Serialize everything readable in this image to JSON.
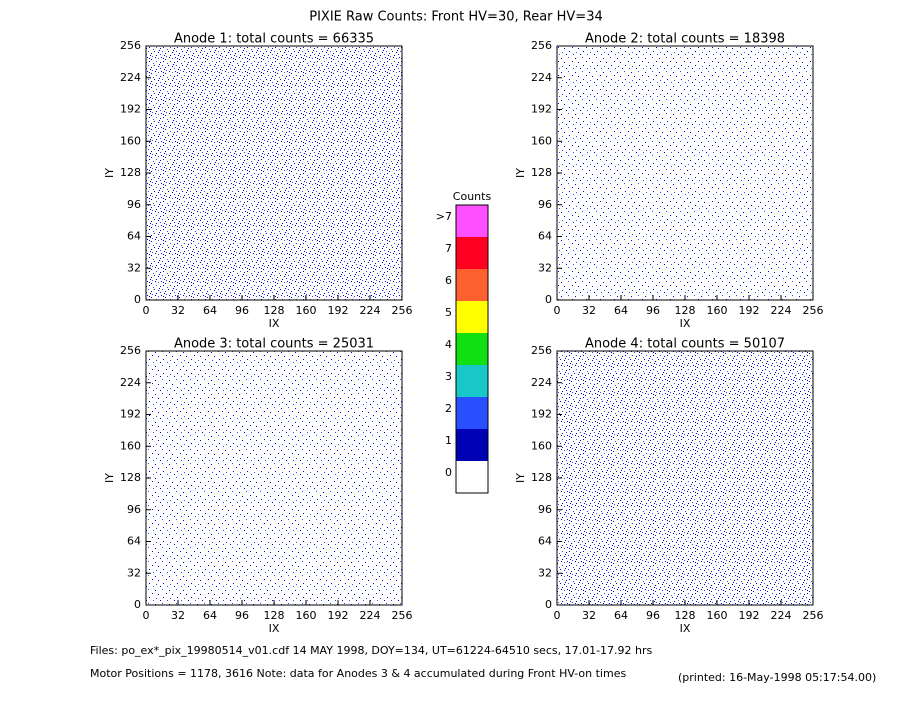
{
  "title": "PIXIE Raw Counts:  Front HV=30, Rear HV=34",
  "chart_data": [
    {
      "type": "heatmap",
      "title": "Anode 1: total counts = 66335",
      "x_label": "IX",
      "y_label": "IY",
      "xlim": [
        0,
        256
      ],
      "ylim": [
        0,
        256
      ],
      "xticks": [
        0,
        32,
        64,
        96,
        128,
        160,
        192,
        224,
        256
      ],
      "yticks": [
        0,
        32,
        64,
        96,
        128,
        160,
        192,
        224,
        256
      ]
    },
    {
      "type": "heatmap",
      "title": "Anode 2: total counts = 18398",
      "x_label": "IX",
      "y_label": "IY",
      "xlim": [
        0,
        256
      ],
      "ylim": [
        0,
        256
      ],
      "xticks": [
        0,
        32,
        64,
        96,
        128,
        160,
        192,
        224,
        256
      ],
      "yticks": [
        0,
        32,
        64,
        96,
        128,
        160,
        192,
        224,
        256
      ]
    },
    {
      "type": "heatmap",
      "title": "Anode 3: total counts = 25031",
      "x_label": "IX",
      "y_label": "IY",
      "xlim": [
        0,
        256
      ],
      "ylim": [
        0,
        256
      ],
      "xticks": [
        0,
        32,
        64,
        96,
        128,
        160,
        192,
        224,
        256
      ],
      "yticks": [
        0,
        32,
        64,
        96,
        128,
        160,
        192,
        224,
        256
      ]
    },
    {
      "type": "heatmap",
      "title": "Anode 4: total counts = 50107",
      "x_label": "IX",
      "y_label": "IY",
      "xlim": [
        0,
        256
      ],
      "ylim": [
        0,
        256
      ],
      "xticks": [
        0,
        32,
        64,
        96,
        128,
        160,
        192,
        224,
        256
      ],
      "yticks": [
        0,
        32,
        64,
        96,
        128,
        160,
        192,
        224,
        256
      ]
    }
  ],
  "colorbar": {
    "title": "Counts",
    "ticks": [
      0,
      1,
      2,
      3,
      4,
      5,
      6,
      7,
      {
        "value": 8,
        "label": ">7"
      }
    ],
    "colors": [
      "#ffffff",
      "#0000b4",
      "#2850ff",
      "#18c8c8",
      "#10e010",
      "#ffff00",
      "#ff6030",
      "#ff0020",
      "#ff50ff"
    ]
  },
  "footer": {
    "files": "Files: po_ex*_pix_19980514_v01.cdf    14 MAY 1998, DOY=134, UT=61224-64510 secs, 17.01-17.92 hrs",
    "motor": "Motor Positions = 1178, 3616   Note: data for Anodes 3 & 4 accumulated during Front HV-on times",
    "printed": "(printed: 16-May-1998 05:17:54.00)"
  }
}
